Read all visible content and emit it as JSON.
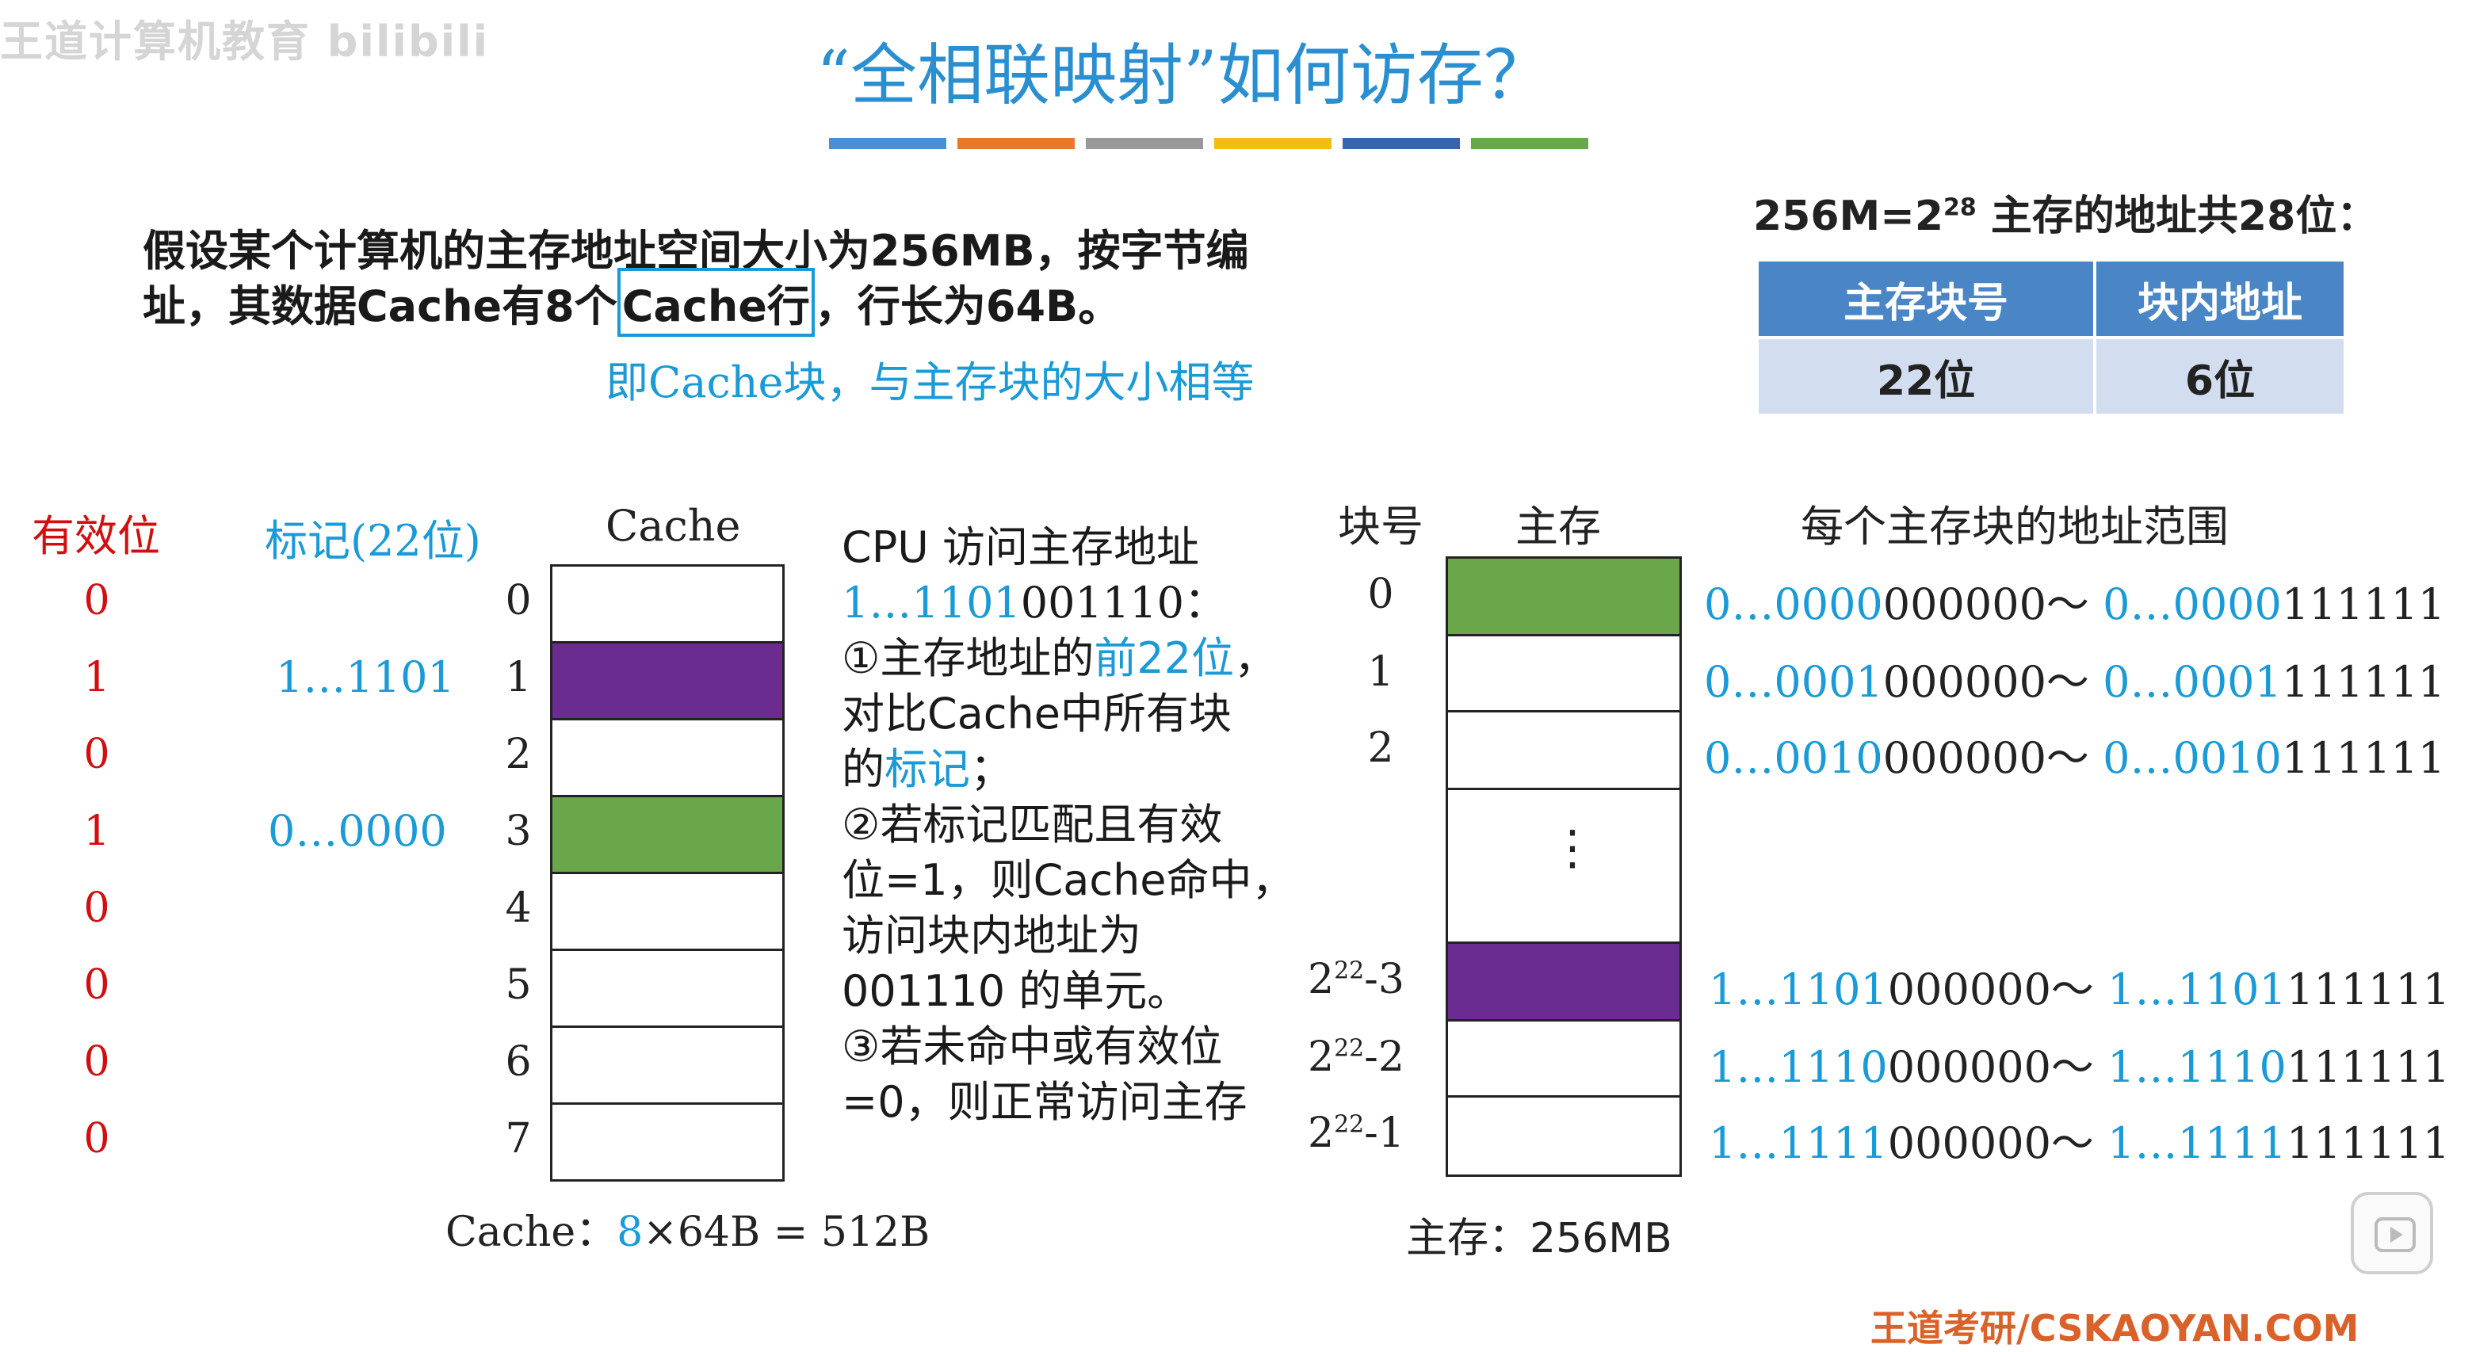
{
  "watermark": "王道计算机教育 bilibili",
  "title": "“全相联映射”如何访存？",
  "colors": {
    "title": "#2a8fd0",
    "accent_blue": "#1a9ad6",
    "valid_red": "#d01010",
    "purple_block": "#6a2c91",
    "green_block": "#6aa64a",
    "table_header": "#4a86c5",
    "table_body": "#d2def0"
  },
  "title_bars": [
    "#4a8fd6",
    "#e8782a",
    "#999999",
    "#f2bd12",
    "#3a63ad",
    "#6aa64a"
  ],
  "intro": {
    "line1": "假设某个计算机的主存地址空间大小为256MB，按字节编",
    "line2_pre": "址，其数据Cache有8个",
    "line2_boxed": "Cache行",
    "line2_post": "，行长为64B。",
    "note": "即Cache块，与主存块的大小相等"
  },
  "address_format": {
    "header_pre": "256M=2",
    "header_exp": "28",
    "header_post": " 主存的地址共28位：",
    "columns": [
      "主存块号",
      "块内地址"
    ],
    "values": [
      "22位",
      "6位"
    ]
  },
  "cache": {
    "valid_header": "有效位",
    "tag_header": "标记(22位)",
    "cache_header": "Cache",
    "rows": [
      {
        "index": "0",
        "valid": "0",
        "tag": "",
        "fill": "none"
      },
      {
        "index": "1",
        "valid": "1",
        "tag": "1…1101",
        "fill": "purple"
      },
      {
        "index": "2",
        "valid": "0",
        "tag": "",
        "fill": "none"
      },
      {
        "index": "3",
        "valid": "1",
        "tag": "0…0000",
        "fill": "green"
      },
      {
        "index": "4",
        "valid": "0",
        "tag": "",
        "fill": "none"
      },
      {
        "index": "5",
        "valid": "0",
        "tag": "",
        "fill": "none"
      },
      {
        "index": "6",
        "valid": "0",
        "tag": "",
        "fill": "none"
      },
      {
        "index": "7",
        "valid": "0",
        "tag": "",
        "fill": "none"
      }
    ],
    "caption_pre": "Cache：",
    "caption_num": "8",
    "caption_post": "×64B = 512B"
  },
  "steps": {
    "l1": "CPU 访问主存地址",
    "l2_blue": "1…1101",
    "l2_black": "001110：",
    "l3_pre": "①主存地址的",
    "l3_blue": "前22位",
    "l3_post": "，",
    "l4": "对比Cache中所有块",
    "l5_pre": "的",
    "l5_blue": "标记",
    "l5_post": "；",
    "l6": "②若标记匹配且有效",
    "l7": "位=1，则Cache命中，",
    "l8": "访问块内地址为",
    "l9": "001110 的单元。",
    "l10": "③若未命中或有效位",
    "l11": "=0，则正常访问主存"
  },
  "memory": {
    "block_header": "块号",
    "mem_header": "主存",
    "range_header": "每个主存块的地址范围",
    "ellipsis": "⋮",
    "blocks": [
      {
        "num": "0",
        "sup": "",
        "suffix": "",
        "range": {
          "a_blue": "0…0000",
          "a_black": "000000～ ",
          "b_blue": "0…0000",
          "b_black": "111111"
        }
      },
      {
        "num": "1",
        "sup": "",
        "suffix": "",
        "range": {
          "a_blue": "0…0001",
          "a_black": "000000～ ",
          "b_blue": "0…0001",
          "b_black": "111111"
        }
      },
      {
        "num": "2",
        "sup": "",
        "suffix": "",
        "range": {
          "a_blue": "0…0010",
          "a_black": "000000～ ",
          "b_blue": "0…0010",
          "b_black": "111111"
        }
      },
      {
        "num": "2",
        "sup": "22",
        "suffix": "-3",
        "range": {
          "a_blue": "1…1101",
          "a_black": "000000～ ",
          "b_blue": "1…1101",
          "b_black": "111111"
        }
      },
      {
        "num": "2",
        "sup": "22",
        "suffix": "-2",
        "range": {
          "a_blue": "1…1110",
          "a_black": "000000～ ",
          "b_blue": "1…1110",
          "b_black": "111111"
        }
      },
      {
        "num": "2",
        "sup": "22",
        "suffix": "-1",
        "range": {
          "a_blue": "1…1111",
          "a_black": "000000～ ",
          "b_blue": "1…1111",
          "b_black": "111111"
        }
      }
    ],
    "caption": "主存：256MB"
  },
  "footer": "王道考研/CSKAOYAN.COM"
}
